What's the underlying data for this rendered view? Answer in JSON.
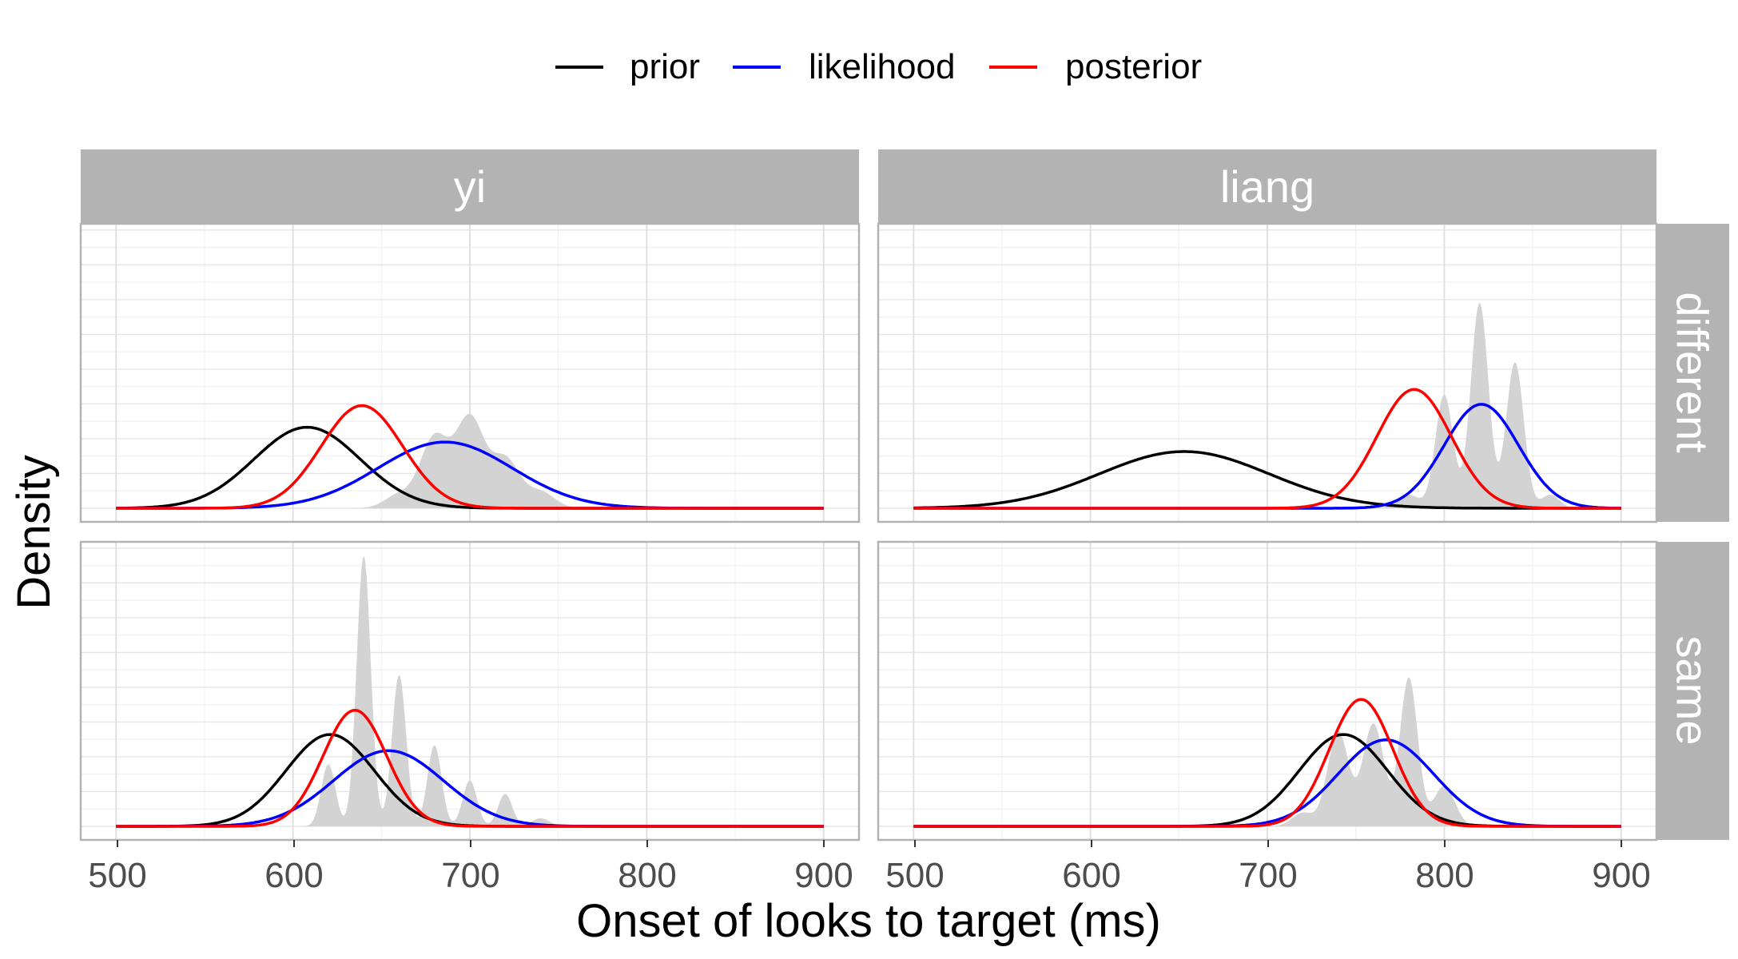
{
  "chart_data": {
    "type": "line",
    "xlabel": "Onset of looks to target (ms)",
    "ylabel": "Density",
    "xlim": [
      480,
      920
    ],
    "x_ticks": [
      500,
      600,
      700,
      800,
      900
    ],
    "x_tick_labels": [
      "500",
      "600",
      "700",
      "800",
      "900"
    ],
    "y_ticks_shown": false,
    "grid": true,
    "legend": {
      "position": "top",
      "entries": [
        {
          "key": "prior",
          "label": "prior",
          "color": "#000000"
        },
        {
          "key": "likelihood",
          "label": "likelihood",
          "color": "#0000ff"
        },
        {
          "key": "posterior",
          "label": "posterior",
          "color": "#ff0000"
        }
      ]
    },
    "column_facets": [
      "yi",
      "liang"
    ],
    "row_facets": [
      "different",
      "same"
    ],
    "panels": [
      {
        "col": "yi",
        "row": "different",
        "ymax": 1.0,
        "curves": {
          "prior": {
            "mean": 608,
            "sd": 30,
            "peak": 0.3
          },
          "likelihood": {
            "mean": 686,
            "sd": 38,
            "peak": 0.245
          },
          "posterior": {
            "mean": 639,
            "sd": 23,
            "peak": 0.38
          }
        },
        "data_density": {
          "spikes": [
            [
              660,
              0.05,
              8
            ],
            [
              680,
              0.26,
              8
            ],
            [
              700,
              0.33,
              8
            ],
            [
              720,
              0.18,
              8
            ],
            [
              740,
              0.06,
              8
            ]
          ]
        }
      },
      {
        "col": "liang",
        "row": "different",
        "ymax": 1.0,
        "curves": {
          "prior": {
            "mean": 653,
            "sd": 48,
            "peak": 0.21
          },
          "likelihood": {
            "mean": 821,
            "sd": 21,
            "peak": 0.385
          },
          "posterior": {
            "mean": 783,
            "sd": 21,
            "peak": 0.44
          }
        },
        "data_density": {
          "spikes": [
            [
              780,
              0.05,
              6
            ],
            [
              800,
              0.42,
              5
            ],
            [
              820,
              0.76,
              5
            ],
            [
              840,
              0.54,
              5
            ],
            [
              860,
              0.05,
              5
            ]
          ]
        }
      },
      {
        "col": "yi",
        "row": "same",
        "ymax": 1.0,
        "curves": {
          "prior": {
            "mean": 621,
            "sd": 25,
            "peak": 0.34
          },
          "likelihood": {
            "mean": 654,
            "sd": 31,
            "peak": 0.28
          },
          "posterior": {
            "mean": 635,
            "sd": 18,
            "peak": 0.43
          }
        },
        "data_density": {
          "spikes": [
            [
              620,
              0.23,
              4
            ],
            [
              640,
              1.0,
              4
            ],
            [
              660,
              0.56,
              4
            ],
            [
              680,
              0.3,
              4
            ],
            [
              700,
              0.17,
              4
            ],
            [
              720,
              0.12,
              4
            ],
            [
              740,
              0.03,
              5
            ]
          ]
        }
      },
      {
        "col": "liang",
        "row": "same",
        "ymax": 1.0,
        "curves": {
          "prior": {
            "mean": 743,
            "sd": 25,
            "peak": 0.34
          },
          "likelihood": {
            "mean": 767,
            "sd": 27,
            "peak": 0.32
          },
          "posterior": {
            "mean": 753,
            "sd": 18,
            "peak": 0.47
          }
        },
        "data_density": {
          "spikes": [
            [
              720,
              0.05,
              6
            ],
            [
              740,
              0.35,
              6
            ],
            [
              760,
              0.38,
              6
            ],
            [
              780,
              0.55,
              5
            ],
            [
              800,
              0.15,
              6
            ]
          ]
        }
      }
    ]
  }
}
